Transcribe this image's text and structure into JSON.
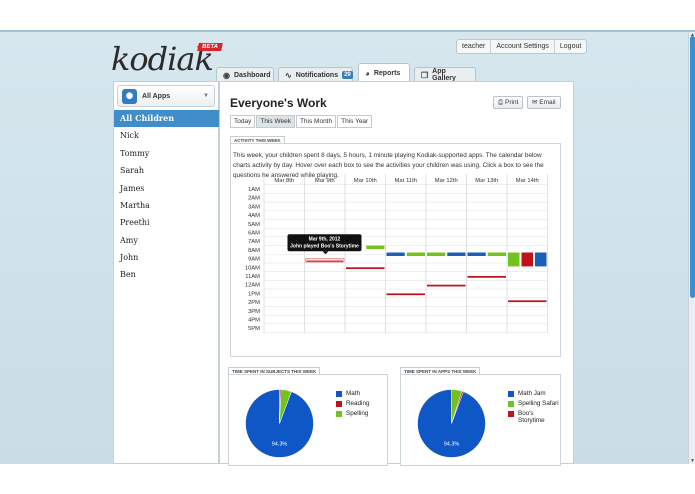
{
  "brand": {
    "logo": "kodiak",
    "beta": "BETA"
  },
  "toplinks": [
    "teacher",
    "Account Settings",
    "Logout"
  ],
  "tabs": [
    {
      "label": "Dashboard",
      "icon": "bear-icon"
    },
    {
      "label": "Notifications",
      "icon": "pulse-icon",
      "badge": "29"
    },
    {
      "label": "Reports",
      "icon": "pie-chart-icon",
      "active": true
    },
    {
      "label": "App Gallery",
      "icon": "gallery-icon"
    }
  ],
  "sidebar": {
    "app_selector": "All Apps",
    "children": [
      "All Children",
      "Nick",
      "Tommy",
      "Sarah",
      "James",
      "Martha",
      "Preethi",
      "Amy",
      "John",
      "Ben"
    ],
    "selected": "All Children"
  },
  "main": {
    "title": "Everyone's Work",
    "print_label": "Print",
    "email_label": "Email",
    "periods": [
      "Today",
      "This Week",
      "This Month",
      "This Year"
    ],
    "selected_period": "This Week",
    "activity_tab": "ACTIVITY THIS WEEK",
    "activity_text": "This week, your children spent 8 days, 5 hours, 1 minute playing Kodiak-supported apps. The calendar below charts activity by day. Hover over each box to see the activities your children was using. Click a box to see the questions he answered while playing.",
    "subjects_tab": "TIME SPENT IN SUBJECTS THIS WEEK",
    "apps_tab": "TIME SPENT IN APPS THIS WEEK"
  },
  "calendar": {
    "days": [
      "Mar 8th",
      "Mar 9th",
      "Mar 10th",
      "Mar 11th",
      "Mar 12th",
      "Mar 13th",
      "Mar 14th"
    ],
    "hours": [
      "1AM",
      "2AM",
      "3AM",
      "4AM",
      "5AM",
      "6AM",
      "7AM",
      "8AM",
      "9AM",
      "10AM",
      "11AM",
      "12AM",
      "1PM",
      "2PM",
      "3PM",
      "4PM",
      "5PM"
    ],
    "tooltip": {
      "title": "Mar 9th, 2012",
      "text": "John played Boo's Storytime"
    },
    "blocks": [
      {
        "day": 1,
        "start": 9,
        "end": 9.4,
        "color": "#d5252b",
        "col": 0,
        "cols": 1,
        "outline": true
      },
      {
        "day": 1,
        "start": 7.5,
        "end": 7.8,
        "color": "#73c21f",
        "col": 1,
        "cols": 2
      },
      {
        "day": 2,
        "start": 7.5,
        "end": 7.9,
        "color": "#73c21f",
        "col": 1,
        "cols": 2
      },
      {
        "day": 2,
        "start": 10,
        "end": 10.2,
        "color": "#c0121a",
        "col": 0,
        "cols": 1
      },
      {
        "day": 3,
        "start": 8.3,
        "end": 8.7,
        "color": "#1c5fb8",
        "col": 0,
        "cols": 2
      },
      {
        "day": 3,
        "start": 8.3,
        "end": 8.7,
        "color": "#73c21f",
        "col": 1,
        "cols": 2
      },
      {
        "day": 3,
        "start": 13,
        "end": 13.2,
        "color": "#c0121a",
        "col": 0,
        "cols": 1
      },
      {
        "day": 4,
        "start": 8.3,
        "end": 8.7,
        "color": "#73c21f",
        "col": 0,
        "cols": 2
      },
      {
        "day": 4,
        "start": 8.3,
        "end": 8.7,
        "color": "#1c5fb8",
        "col": 1,
        "cols": 2
      },
      {
        "day": 4,
        "start": 12,
        "end": 12.2,
        "color": "#c0121a",
        "col": 0,
        "cols": 1
      },
      {
        "day": 5,
        "start": 8.3,
        "end": 8.7,
        "color": "#1c5fb8",
        "col": 0,
        "cols": 2
      },
      {
        "day": 5,
        "start": 8.3,
        "end": 8.7,
        "color": "#73c21f",
        "col": 1,
        "cols": 2
      },
      {
        "day": 5,
        "start": 11,
        "end": 11.2,
        "color": "#c0121a",
        "col": 0,
        "cols": 1
      },
      {
        "day": 6,
        "start": 8.3,
        "end": 9.9,
        "color": "#73c21f",
        "col": 0,
        "cols": 3
      },
      {
        "day": 6,
        "start": 8.3,
        "end": 9.9,
        "color": "#c0121a",
        "col": 1,
        "cols": 3
      },
      {
        "day": 6,
        "start": 8.3,
        "end": 9.9,
        "color": "#1c5fb8",
        "col": 2,
        "cols": 3
      },
      {
        "day": 6,
        "start": 13.8,
        "end": 14,
        "color": "#c0121a",
        "col": 0,
        "cols": 1
      }
    ]
  },
  "subjects_pie": {
    "label": "94.3%",
    "slices": [
      {
        "name": "Math",
        "value": 94.3,
        "color": "#0f57c7"
      },
      {
        "name": "Reading",
        "value": 0.7,
        "color": "#c0121a"
      },
      {
        "name": "Spelling",
        "value": 5.0,
        "color": "#73c21f"
      }
    ]
  },
  "apps_pie": {
    "label": "94.3%",
    "slices": [
      {
        "name": "Math Jam",
        "value": 94.3,
        "color": "#0f57c7"
      },
      {
        "name": "Spelling Safari",
        "value": 5.0,
        "color": "#73c21f"
      },
      {
        "name": "Boo's Storytime",
        "value": 0.7,
        "color": "#c0121a"
      }
    ]
  }
}
